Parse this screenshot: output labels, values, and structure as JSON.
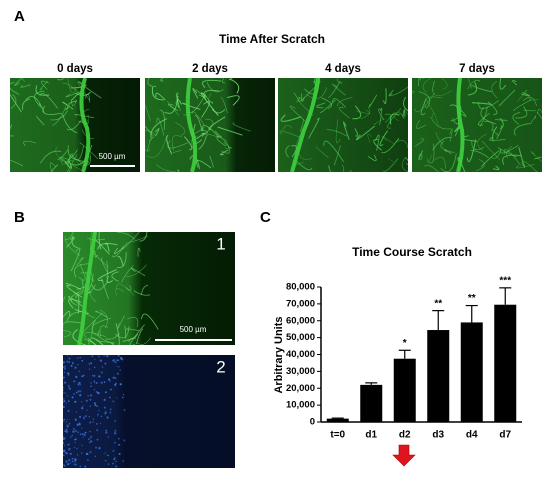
{
  "panels": {
    "A": {
      "label": "A",
      "title": "Time After Scratch",
      "images": [
        {
          "label": "0 days"
        },
        {
          "label": "2 days"
        },
        {
          "label": "4 days"
        },
        {
          "label": "7 days"
        }
      ],
      "scale_bar": "500 µm"
    },
    "B": {
      "label": "B",
      "images": [
        {
          "label": "1"
        },
        {
          "label": "2"
        }
      ],
      "scale_bar": "500 µm"
    },
    "C": {
      "label": "C"
    }
  },
  "chart_data": {
    "type": "bar",
    "title": "Time Course Scratch",
    "y_label": "Arbitrary Units",
    "categories": [
      "t=0",
      "d1",
      "d2",
      "d3",
      "d4",
      "d7"
    ],
    "values": [
      2000,
      22000,
      37500,
      54500,
      59000,
      69500
    ],
    "errors": [
      300,
      1200,
      5000,
      11500,
      10000,
      10000
    ],
    "annotations": [
      null,
      null,
      "*",
      "**",
      "**",
      "***"
    ],
    "color": "#000000",
    "ylim": [
      0,
      80000
    ],
    "yticks": [
      0,
      {
        "value": 10000,
        "label": "10,000"
      },
      {
        "value": 20000,
        "label": "20,000"
      },
      {
        "value": 30000,
        "label": "30,000"
      },
      {
        "value": 40000,
        "label": "40,000"
      },
      {
        "value": 50000,
        "label": "50,000"
      },
      {
        "value": 60000,
        "label": "60,000"
      },
      {
        "value": 70000,
        "label": "70,000"
      },
      {
        "value": 80000,
        "label": "80,000"
      }
    ]
  }
}
